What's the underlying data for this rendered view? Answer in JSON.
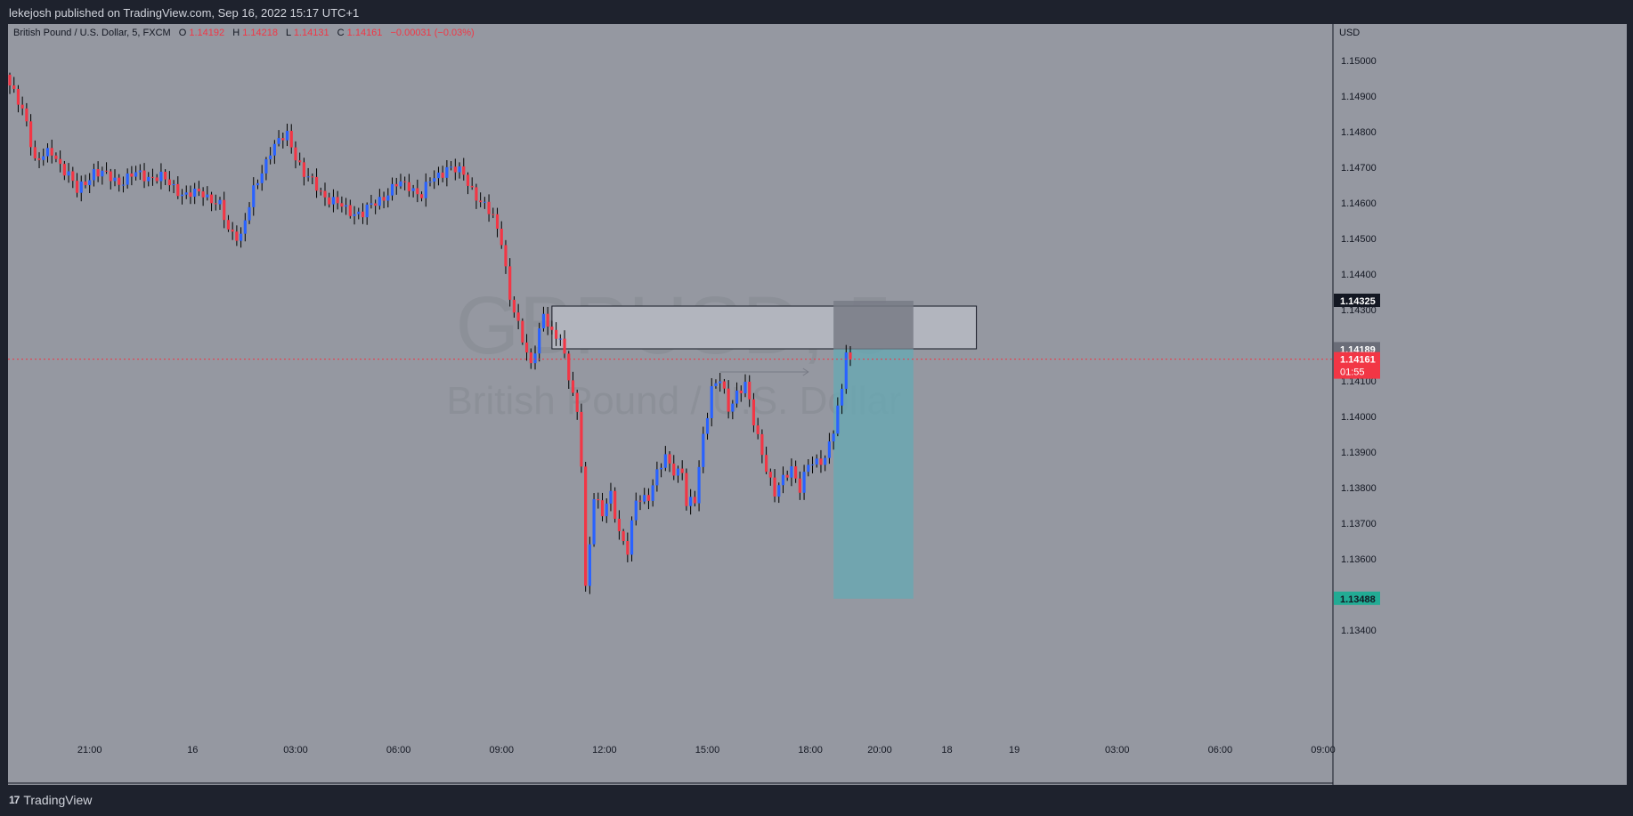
{
  "header": {
    "publish_line": "lekejosh published on TradingView.com, Sep 16, 2022 15:17 UTC+1"
  },
  "footer": {
    "brand": "TradingView"
  },
  "legend": {
    "symbol_label": "British Pound / U.S. Dollar, 5, FXCM",
    "open_key": "O",
    "open_value": "1.14192",
    "high_key": "H",
    "high_value": "1.14218",
    "low_key": "L",
    "low_value": "1.14131",
    "close_key": "C",
    "close_value": "1.14161",
    "change_value": "−0.00031 (−0.03%)"
  },
  "watermark": {
    "symbol": "GBPUSD, 5",
    "name": "British Pound / U.S. Dollar"
  },
  "colors": {
    "up": "#2962ff",
    "down": "#f23645",
    "wick": "#000000",
    "background": "#9598a1",
    "target_zone": "#66a9b4",
    "zone": "#b2b5be"
  },
  "chart_data": {
    "type": "candlestick",
    "title": "British Pound / U.S. Dollar, 5, FXCM",
    "currency_label": "USD",
    "ylim": [
      1.1334,
      1.1516
    ],
    "y_ticks": [
      "1.15000",
      "1.14900",
      "1.14800",
      "1.14700",
      "1.14600",
      "1.14500",
      "1.14400",
      "1.14300",
      "1.14100",
      "1.14000",
      "1.13900",
      "1.13800",
      "1.13700",
      "1.13600",
      "1.13400"
    ],
    "x_ticks": [
      "21:00",
      "16",
      "03:00",
      "06:00",
      "09:00",
      "12:00",
      "15:00",
      "18:00",
      "20:00",
      "18",
      "19",
      "03:00",
      "06:00",
      "09:00"
    ],
    "price_labels": [
      {
        "value": 1.14325,
        "text": "1.14325",
        "bg": "#131722",
        "fg": "#ffffff"
      },
      {
        "value": 1.14189,
        "text": "1.14189",
        "bg": "#6a6d78",
        "fg": "#ffffff"
      },
      {
        "value": 1.14161,
        "text": "1.14161",
        "sub": "01:55",
        "bg": "#f23645",
        "fg": "#ffffff"
      },
      {
        "value": 1.13488,
        "text": "1.13488",
        "bg": "#22ab94",
        "fg": "#131722"
      }
    ],
    "last_price": 1.14161,
    "anchors": [
      [
        0,
        1.1493
      ],
      [
        4,
        1.1483
      ],
      [
        6,
        1.1472
      ],
      [
        10,
        1.1474
      ],
      [
        14,
        1.1468
      ],
      [
        16,
        1.1463
      ],
      [
        20,
        1.1469
      ],
      [
        26,
        1.1466
      ],
      [
        30,
        1.1468
      ],
      [
        36,
        1.1467
      ],
      [
        42,
        1.1462
      ],
      [
        46,
        1.1463
      ],
      [
        50,
        1.1459
      ],
      [
        52,
        1.1452
      ],
      [
        55,
        1.1451
      ],
      [
        58,
        1.1463
      ],
      [
        62,
        1.1475
      ],
      [
        66,
        1.1479
      ],
      [
        70,
        1.1468
      ],
      [
        75,
        1.1462
      ],
      [
        80,
        1.1458
      ],
      [
        84,
        1.1457
      ],
      [
        88,
        1.1461
      ],
      [
        92,
        1.1465
      ],
      [
        95,
        1.1465
      ],
      [
        98,
        1.1462
      ],
      [
        100,
        1.1466
      ],
      [
        104,
        1.147
      ],
      [
        108,
        1.1468
      ],
      [
        112,
        1.146
      ],
      [
        115,
        1.1456
      ],
      [
        117,
        1.145
      ],
      [
        119,
        1.1433
      ],
      [
        121,
        1.1425
      ],
      [
        124,
        1.1415
      ],
      [
        127,
        1.1428
      ],
      [
        129,
        1.1423
      ],
      [
        131,
        1.1423
      ],
      [
        133,
        1.1411
      ],
      [
        135,
        1.14
      ],
      [
        136,
        1.1387
      ],
      [
        137,
        1.1352
      ],
      [
        139,
        1.1378
      ],
      [
        141,
        1.1372
      ],
      [
        143,
        1.1378
      ],
      [
        145,
        1.1368
      ],
      [
        147,
        1.1362
      ],
      [
        149,
        1.1376
      ],
      [
        152,
        1.1378
      ],
      [
        154,
        1.1384
      ],
      [
        156,
        1.1388
      ],
      [
        158,
        1.1385
      ],
      [
        160,
        1.1385
      ],
      [
        161,
        1.1375
      ],
      [
        163,
        1.1376
      ],
      [
        165,
        1.1395
      ],
      [
        167,
        1.1408
      ],
      [
        169,
        1.141
      ],
      [
        171,
        1.1402
      ],
      [
        173,
        1.1407
      ],
      [
        175,
        1.1409
      ],
      [
        177,
        1.1398
      ],
      [
        179,
        1.139
      ],
      [
        180,
        1.1386
      ],
      [
        182,
        1.1378
      ],
      [
        184,
        1.1382
      ],
      [
        186,
        1.1386
      ],
      [
        188,
        1.138
      ],
      [
        190,
        1.1386
      ],
      [
        192,
        1.1387
      ],
      [
        194,
        1.1389
      ],
      [
        196,
        1.1396
      ],
      [
        198,
        1.1407
      ],
      [
        199,
        1.1419
      ],
      [
        200,
        1.1416
      ]
    ],
    "annotations": {
      "supply_zone": {
        "top": 1.1431,
        "bottom": 1.1419
      },
      "stop_zone": {
        "top": 1.14325,
        "bottom": 1.14189
      },
      "target_zone": {
        "top": 1.14189,
        "bottom": 1.13488
      },
      "arrow": {
        "from_bar": 169,
        "to_bar": 190,
        "price": 1.14125
      }
    }
  }
}
